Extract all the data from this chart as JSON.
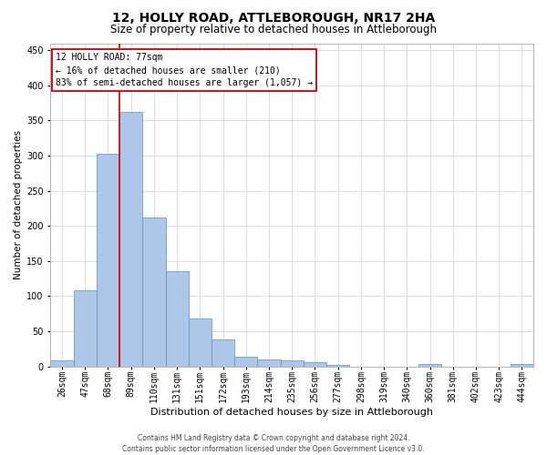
{
  "title": "12, HOLLY ROAD, ATTLEBOROUGH, NR17 2HA",
  "subtitle": "Size of property relative to detached houses in Attleborough",
  "xlabel": "Distribution of detached houses by size in Attleborough",
  "ylabel": "Number of detached properties",
  "footer_line1": "Contains HM Land Registry data © Crown copyright and database right 2024.",
  "footer_line2": "Contains public sector information licensed under the Open Government Licence v3.0.",
  "bin_labels": [
    "26sqm",
    "47sqm",
    "68sqm",
    "89sqm",
    "110sqm",
    "131sqm",
    "151sqm",
    "172sqm",
    "193sqm",
    "214sqm",
    "235sqm",
    "256sqm",
    "277sqm",
    "298sqm",
    "319sqm",
    "340sqm",
    "360sqm",
    "381sqm",
    "402sqm",
    "423sqm",
    "444sqm"
  ],
  "bar_values": [
    8,
    108,
    302,
    362,
    212,
    136,
    68,
    38,
    13,
    10,
    9,
    6,
    2,
    0,
    0,
    0,
    3,
    0,
    0,
    0,
    3
  ],
  "bar_color": "#aec6e8",
  "bar_edge_color": "#5a8fc0",
  "red_line_x": 2.5,
  "red_line_color": "#cc0000",
  "annotation_line1": "12 HOLLY ROAD: 77sqm",
  "annotation_line2": "← 16% of detached houses are smaller (210)",
  "annotation_line3": "83% of semi-detached houses are larger (1,057) →",
  "annotation_box_color": "#ffffff",
  "annotation_box_edge": "#cc0000",
  "ylim": [
    0,
    460
  ],
  "yticks": [
    0,
    50,
    100,
    150,
    200,
    250,
    300,
    350,
    400,
    450
  ],
  "background_color": "#ffffff",
  "grid_color": "#d0d8e8",
  "title_fontsize": 10,
  "subtitle_fontsize": 8.5,
  "ylabel_fontsize": 7.5,
  "xlabel_fontsize": 8,
  "tick_fontsize": 7,
  "annot_fontsize": 7,
  "footer_fontsize": 5.5
}
